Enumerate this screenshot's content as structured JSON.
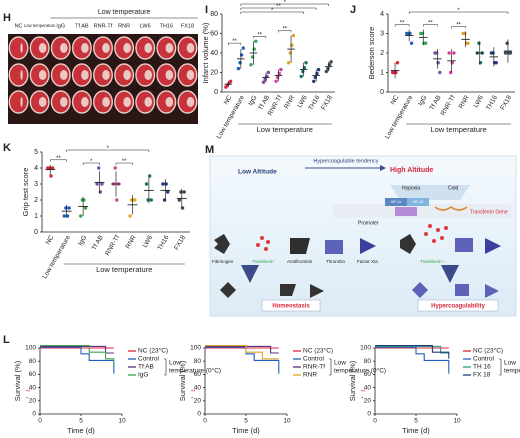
{
  "panel_h": {
    "label": "H",
    "group_label": "Low temperature",
    "columns": [
      "NC",
      "Low temperature",
      "IgG",
      "Tf AB",
      "RNR-Tf",
      "RNR",
      "LW6",
      "TH16",
      "FX18"
    ]
  },
  "chart_data": [
    {
      "type": "dot",
      "panel": "I",
      "ylabel": "Infarct volume (%)",
      "group_label": "Low temperature",
      "categories": [
        "NC",
        "Low temperature",
        "IgG",
        "Tf AB",
        "RNR-Tf",
        "RNR",
        "LW6",
        "TH16",
        "FX18"
      ],
      "colors": [
        "#d7263d",
        "#1f5fbf",
        "#3aa655",
        "#7b4fa0",
        "#d63fa0",
        "#e0a526",
        "#1b6f6a",
        "#243b7a",
        "#3a4a5a"
      ],
      "values": [
        8,
        34,
        40,
        15,
        17,
        44,
        23,
        17,
        26
      ],
      "errors": [
        3,
        10,
        12,
        5,
        6,
        14,
        7,
        6,
        5
      ],
      "points": [
        [
          5,
          7,
          9,
          11
        ],
        [
          24,
          30,
          38,
          45
        ],
        [
          28,
          36,
          44,
          52
        ],
        [
          10,
          13,
          16,
          20
        ],
        [
          11,
          15,
          19,
          23
        ],
        [
          30,
          40,
          48,
          58
        ],
        [
          16,
          21,
          25,
          30
        ],
        [
          11,
          15,
          19,
          23
        ],
        [
          21,
          24,
          28,
          31
        ]
      ],
      "ylim": [
        0,
        80
      ],
      "yticks": [
        0,
        20,
        40,
        60,
        80
      ],
      "significance": [
        {
          "label": "**",
          "pair": [
            0,
            1
          ]
        },
        {
          "label": "**",
          "pair": [
            2,
            3
          ]
        },
        {
          "label": "**",
          "pair": [
            4,
            5
          ]
        },
        {
          "label": "*",
          "pair": [
            1,
            6
          ]
        },
        {
          "label": "**",
          "pair": [
            1,
            7
          ]
        },
        {
          "label": "*",
          "pair": [
            1,
            8
          ]
        }
      ]
    },
    {
      "type": "dot",
      "panel": "J",
      "ylabel": "Bederson score",
      "group_label": "Low temperature",
      "categories": [
        "NC",
        "Low temperature",
        "IgG",
        "Tf AB",
        "RNR-Tf",
        "RNR",
        "LW6",
        "TH16",
        "FX18"
      ],
      "colors": [
        "#d7263d",
        "#1f5fbf",
        "#3aa655",
        "#7b4fa0",
        "#d63fa0",
        "#e0a526",
        "#1b6f6a",
        "#243b7a",
        "#3a4a5a"
      ],
      "values": [
        1.1,
        2.9,
        2.8,
        1.7,
        1.6,
        2.7,
        2.0,
        1.8,
        2.1
      ],
      "errors": [
        0.4,
        0.3,
        0.4,
        0.5,
        0.6,
        0.4,
        0.6,
        0.5,
        0.6
      ],
      "points": [
        [
          1,
          1,
          1,
          1.5
        ],
        [
          3,
          3,
          3,
          2.5
        ],
        [
          3,
          3,
          2.5,
          2.5
        ],
        [
          2,
          2,
          1.5,
          1
        ],
        [
          2,
          1,
          1.5,
          2
        ],
        [
          3,
          3,
          2.5,
          2.5
        ],
        [
          2,
          2.5,
          1.5,
          2
        ],
        [
          2,
          2,
          1.5,
          1.5
        ],
        [
          2,
          2.5,
          2,
          2
        ]
      ],
      "ylim": [
        0,
        4
      ],
      "yticks": [
        0,
        1,
        2,
        3,
        4
      ],
      "significance": [
        {
          "label": "**",
          "pair": [
            0,
            1
          ]
        },
        {
          "label": "**",
          "pair": [
            2,
            3
          ]
        },
        {
          "label": "**",
          "pair": [
            4,
            5
          ]
        },
        {
          "label": "*",
          "pair": [
            1,
            8
          ]
        }
      ]
    },
    {
      "type": "dot",
      "panel": "K",
      "ylabel": "Grip test score",
      "group_label": "Low temperature",
      "categories": [
        "NC",
        "Low temperature",
        "IgG",
        "Tf AB",
        "RNR-Tf",
        "RNR",
        "LW6",
        "TH16",
        "FX18"
      ],
      "colors": [
        "#d7263d",
        "#1f5fbf",
        "#3aa655",
        "#7b4fa0",
        "#d63fa0",
        "#e0a526",
        "#1b6f6a",
        "#243b7a",
        "#3a4a5a"
      ],
      "values": [
        3.9,
        1.3,
        1.6,
        3.1,
        3.0,
        1.7,
        2.6,
        2.6,
        2.1
      ],
      "errors": [
        0.3,
        0.4,
        0.6,
        0.7,
        0.8,
        0.6,
        0.8,
        0.7,
        0.6
      ],
      "points": [
        [
          4,
          4,
          3.5,
          4
        ],
        [
          1,
          1.5,
          1,
          1.5
        ],
        [
          1,
          2,
          2,
          1.5
        ],
        [
          3,
          4,
          2.5,
          3
        ],
        [
          3,
          4,
          2,
          3
        ],
        [
          1,
          2,
          2,
          2
        ],
        [
          3,
          2,
          3.5,
          2
        ],
        [
          3,
          2,
          3,
          2.5
        ],
        [
          2,
          2.5,
          1.5,
          2.5
        ]
      ],
      "ylim": [
        0,
        5
      ],
      "yticks": [
        0,
        1,
        2,
        3,
        4,
        5
      ],
      "significance": [
        {
          "label": "**",
          "pair": [
            0,
            1
          ]
        },
        {
          "label": "*",
          "pair": [
            2,
            3
          ]
        },
        {
          "label": "**",
          "pair": [
            4,
            5
          ]
        },
        {
          "label": "*",
          "pair": [
            1,
            6
          ]
        }
      ]
    },
    {
      "type": "survival",
      "panel": "L",
      "ylabel": "Survival (%)",
      "xlabel": "Time (d)",
      "group_label": [
        "Low",
        "temperature (0°C)"
      ],
      "annotations": [
        "**",
        "*"
      ],
      "xlim": [
        0,
        10
      ],
      "xticks": [
        0,
        5,
        10
      ],
      "ylim": [
        0,
        100
      ],
      "yticks": [
        0,
        20,
        40,
        60,
        80,
        100
      ],
      "series": [
        {
          "name": "NC (23°C)",
          "color": "#d7263d",
          "x": [
            0,
            9
          ],
          "values": [
            100,
            100
          ]
        },
        {
          "name": "Control",
          "color": "#1f5fbf",
          "x": [
            0,
            5,
            6,
            7,
            9
          ],
          "values": [
            100,
            90,
            80,
            80,
            60
          ]
        },
        {
          "name": "Tf AB",
          "color": "#5a2d82",
          "x": [
            0,
            8,
            9
          ],
          "values": [
            100,
            90,
            90
          ]
        },
        {
          "name": "IgG",
          "color": "#3aa655",
          "x": [
            0,
            6,
            8,
            9
          ],
          "values": [
            100,
            90,
            80,
            70
          ]
        }
      ]
    },
    {
      "type": "survival",
      "ylabel": "Survival (%)",
      "xlabel": "Time (d)",
      "group_label": [
        "Low",
        "temperature (0°C)"
      ],
      "annotations": [
        "**",
        "*"
      ],
      "xlim": [
        0,
        10
      ],
      "xticks": [
        0,
        5,
        10
      ],
      "ylim": [
        0,
        100
      ],
      "yticks": [
        0,
        20,
        40,
        60,
        80,
        100
      ],
      "series": [
        {
          "name": "NC (23°C)",
          "color": "#d7263d",
          "x": [
            0,
            9
          ],
          "values": [
            100,
            100
          ]
        },
        {
          "name": "Control",
          "color": "#1f5fbf",
          "x": [
            0,
            5,
            6,
            7,
            9
          ],
          "values": [
            100,
            90,
            80,
            80,
            60
          ]
        },
        {
          "name": "RNR-Tf",
          "color": "#5a2d82",
          "x": [
            0,
            8,
            9
          ],
          "values": [
            100,
            90,
            90
          ]
        },
        {
          "name": "RNR",
          "color": "#e0a526",
          "x": [
            0,
            5,
            7,
            9
          ],
          "values": [
            100,
            90,
            80,
            80
          ]
        }
      ]
    },
    {
      "type": "survival",
      "ylabel": "Survival (%)",
      "xlabel": "Time (d)",
      "group_label": [
        "Low",
        "temperature (0°C)"
      ],
      "annotations": [
        "**",
        "*"
      ],
      "xlim": [
        0,
        10
      ],
      "xticks": [
        0,
        5,
        10
      ],
      "ylim": [
        0,
        100
      ],
      "yticks": [
        0,
        20,
        40,
        60,
        80,
        100
      ],
      "series": [
        {
          "name": "NC (23°C)",
          "color": "#d7263d",
          "x": [
            0,
            9
          ],
          "values": [
            100,
            100
          ]
        },
        {
          "name": "Control",
          "color": "#1f5fbf",
          "x": [
            0,
            5,
            6,
            7,
            9
          ],
          "values": [
            100,
            90,
            80,
            80,
            60
          ]
        },
        {
          "name": "TH 16",
          "color": "#2a9d8f",
          "x": [
            0,
            8,
            9
          ],
          "values": [
            100,
            90,
            90
          ]
        },
        {
          "name": "FX 18",
          "color": "#243b7a",
          "x": [
            0,
            7,
            9
          ],
          "values": [
            100,
            90,
            80
          ]
        }
      ]
    }
  ],
  "panel_m": {
    "label": "M",
    "low_altitude": "Low Altitude",
    "high_altitude": "High Altitude",
    "tendency": "Hypercoagulable tendency",
    "hypoxia": "Hypoxia",
    "cold": "Cold",
    "hif_a": "HIF-1α",
    "hif_b": "HIF-1β",
    "promoter": "Promoter",
    "gene": "Transferrin Gene",
    "fibrinogen": "Fibrinogen",
    "transferrin": "Transferrin",
    "antithrombin": "Antithrombin",
    "thrombin": "Thrombin",
    "factor": "Factor XIa",
    "transferrin_up": "Transferrin ↑",
    "homeostasis": "Homeostasis",
    "hypercoag": "Hypercoagulability"
  }
}
